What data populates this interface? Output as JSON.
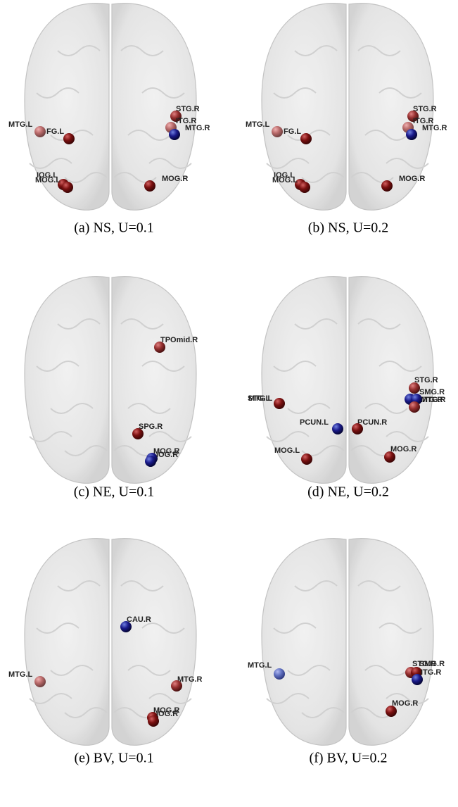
{
  "panels": [
    {
      "caption": "(a) NS, U=0.1",
      "nodes": [
        "MTG.L",
        "FG.L",
        "STG.R",
        "ITG.R",
        "MTG.R",
        "IOG.L",
        "MOG.L",
        "MOG.R"
      ]
    },
    {
      "caption": "(b) NS, U=0.2",
      "nodes": [
        "MTG.L",
        "FG.L",
        "STG.R",
        "ITG.R",
        "MTG.R",
        "IOG.L",
        "MOG.L",
        "MOG.R"
      ]
    },
    {
      "caption": "(c) NE, U=0.1",
      "nodes": [
        "TPOmid.R",
        "SPG.R",
        "MOG.R",
        "IOG.R"
      ]
    },
    {
      "caption": "(d) NE, U=0.2",
      "nodes": [
        "STG.L",
        "MTG.L",
        "STG.R",
        "SMG.R",
        "MTG.R",
        "ITG.R",
        "PCUN.L",
        "PCUN.R",
        "MOG.L",
        "MOG.R"
      ]
    },
    {
      "caption": "(e) BV, U=0.1",
      "nodes": [
        "CAU.R",
        "MTG.L",
        "MTG.R",
        "MOG.R",
        "IOG.R"
      ]
    },
    {
      "caption": "(f) BV, U=0.2",
      "nodes": [
        "MTG.L",
        "STG.R",
        "SMG.R",
        "ITG.R",
        "MOG.R"
      ]
    }
  ]
}
